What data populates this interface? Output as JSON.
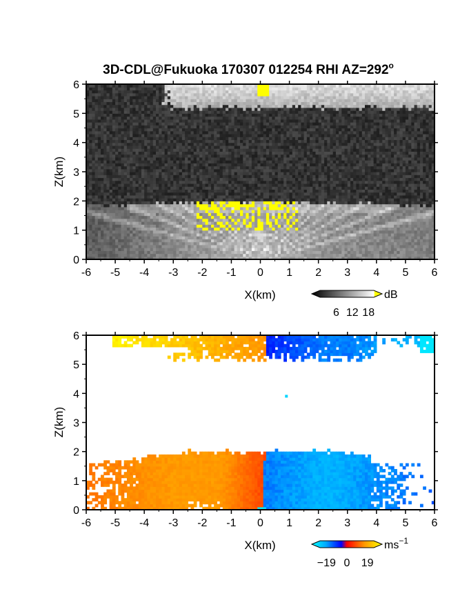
{
  "title": "3D-CDL@Fukuoka 170307 012254 RHI AZ=292",
  "title_degree": "o",
  "chart_data": [
    {
      "type": "heatmap",
      "panel": "backscatter",
      "xlabel": "X(km)",
      "ylabel": "Z(km)",
      "xlim": [
        -6,
        6
      ],
      "ylim": [
        0,
        6
      ],
      "xticks": [
        "-6",
        "-5",
        "-4",
        "-3",
        "-2",
        "-1",
        "0",
        "1",
        "2",
        "3",
        "4",
        "5",
        "6"
      ],
      "yticks": [
        "0",
        "1",
        "2",
        "3",
        "4",
        "5",
        "6"
      ],
      "colorbar": {
        "unit": "dB",
        "ticks": [
          "6",
          "12",
          "18"
        ],
        "range": [
          0,
          20
        ],
        "colors": [
          "#000000",
          "#ffffff",
          "#ffff00"
        ]
      },
      "features": [
        {
          "name": "aerosol boundary layer",
          "z_top_km": 2.0,
          "x_range_km": [
            -6,
            6
          ]
        },
        {
          "name": "cloud layer",
          "z_range_km": [
            5.2,
            6.0
          ],
          "x_range_km": [
            -3.0,
            6.0
          ]
        },
        {
          "name": "saturated echo (>18 dB)",
          "z_top_km": 2.0,
          "x_range_km": [
            -2.2,
            1.3
          ]
        }
      ]
    },
    {
      "type": "heatmap",
      "panel": "doppler velocity",
      "xlabel": "X(km)",
      "ylabel": "Z(km)",
      "xlim": [
        -6,
        6
      ],
      "ylim": [
        0,
        6
      ],
      "xticks": [
        "-6",
        "-5",
        "-4",
        "-3",
        "-2",
        "-1",
        "0",
        "1",
        "2",
        "3",
        "4",
        "5",
        "6"
      ],
      "yticks": [
        "0",
        "1",
        "2",
        "3",
        "4",
        "5",
        "6"
      ],
      "colorbar": {
        "unit": "ms",
        "unit_exp": "−1",
        "ticks": [
          "−19",
          "0",
          "19"
        ],
        "range": [
          -25,
          25
        ],
        "colors": [
          "#00ffff",
          "#0000ff",
          "#ff0000",
          "#ffff00"
        ]
      },
      "features": [
        {
          "name": "boundary layer left",
          "z_top_km": 2.0,
          "x_range_km": [
            -6.0,
            0.0
          ],
          "velocity_ms": 12
        },
        {
          "name": "boundary layer right",
          "z_top_km": 2.0,
          "x_range_km": [
            0.0,
            4.5
          ],
          "velocity_ms": -12
        },
        {
          "name": "cloud left",
          "z_range_km": [
            5.2,
            6.0
          ],
          "x_range_km": [
            -5.0,
            0.0
          ],
          "velocity_ms": 14
        },
        {
          "name": "cloud right",
          "z_range_km": [
            5.2,
            6.0
          ],
          "x_range_km": [
            0.0,
            6.0
          ],
          "velocity_ms": -14
        }
      ]
    }
  ]
}
